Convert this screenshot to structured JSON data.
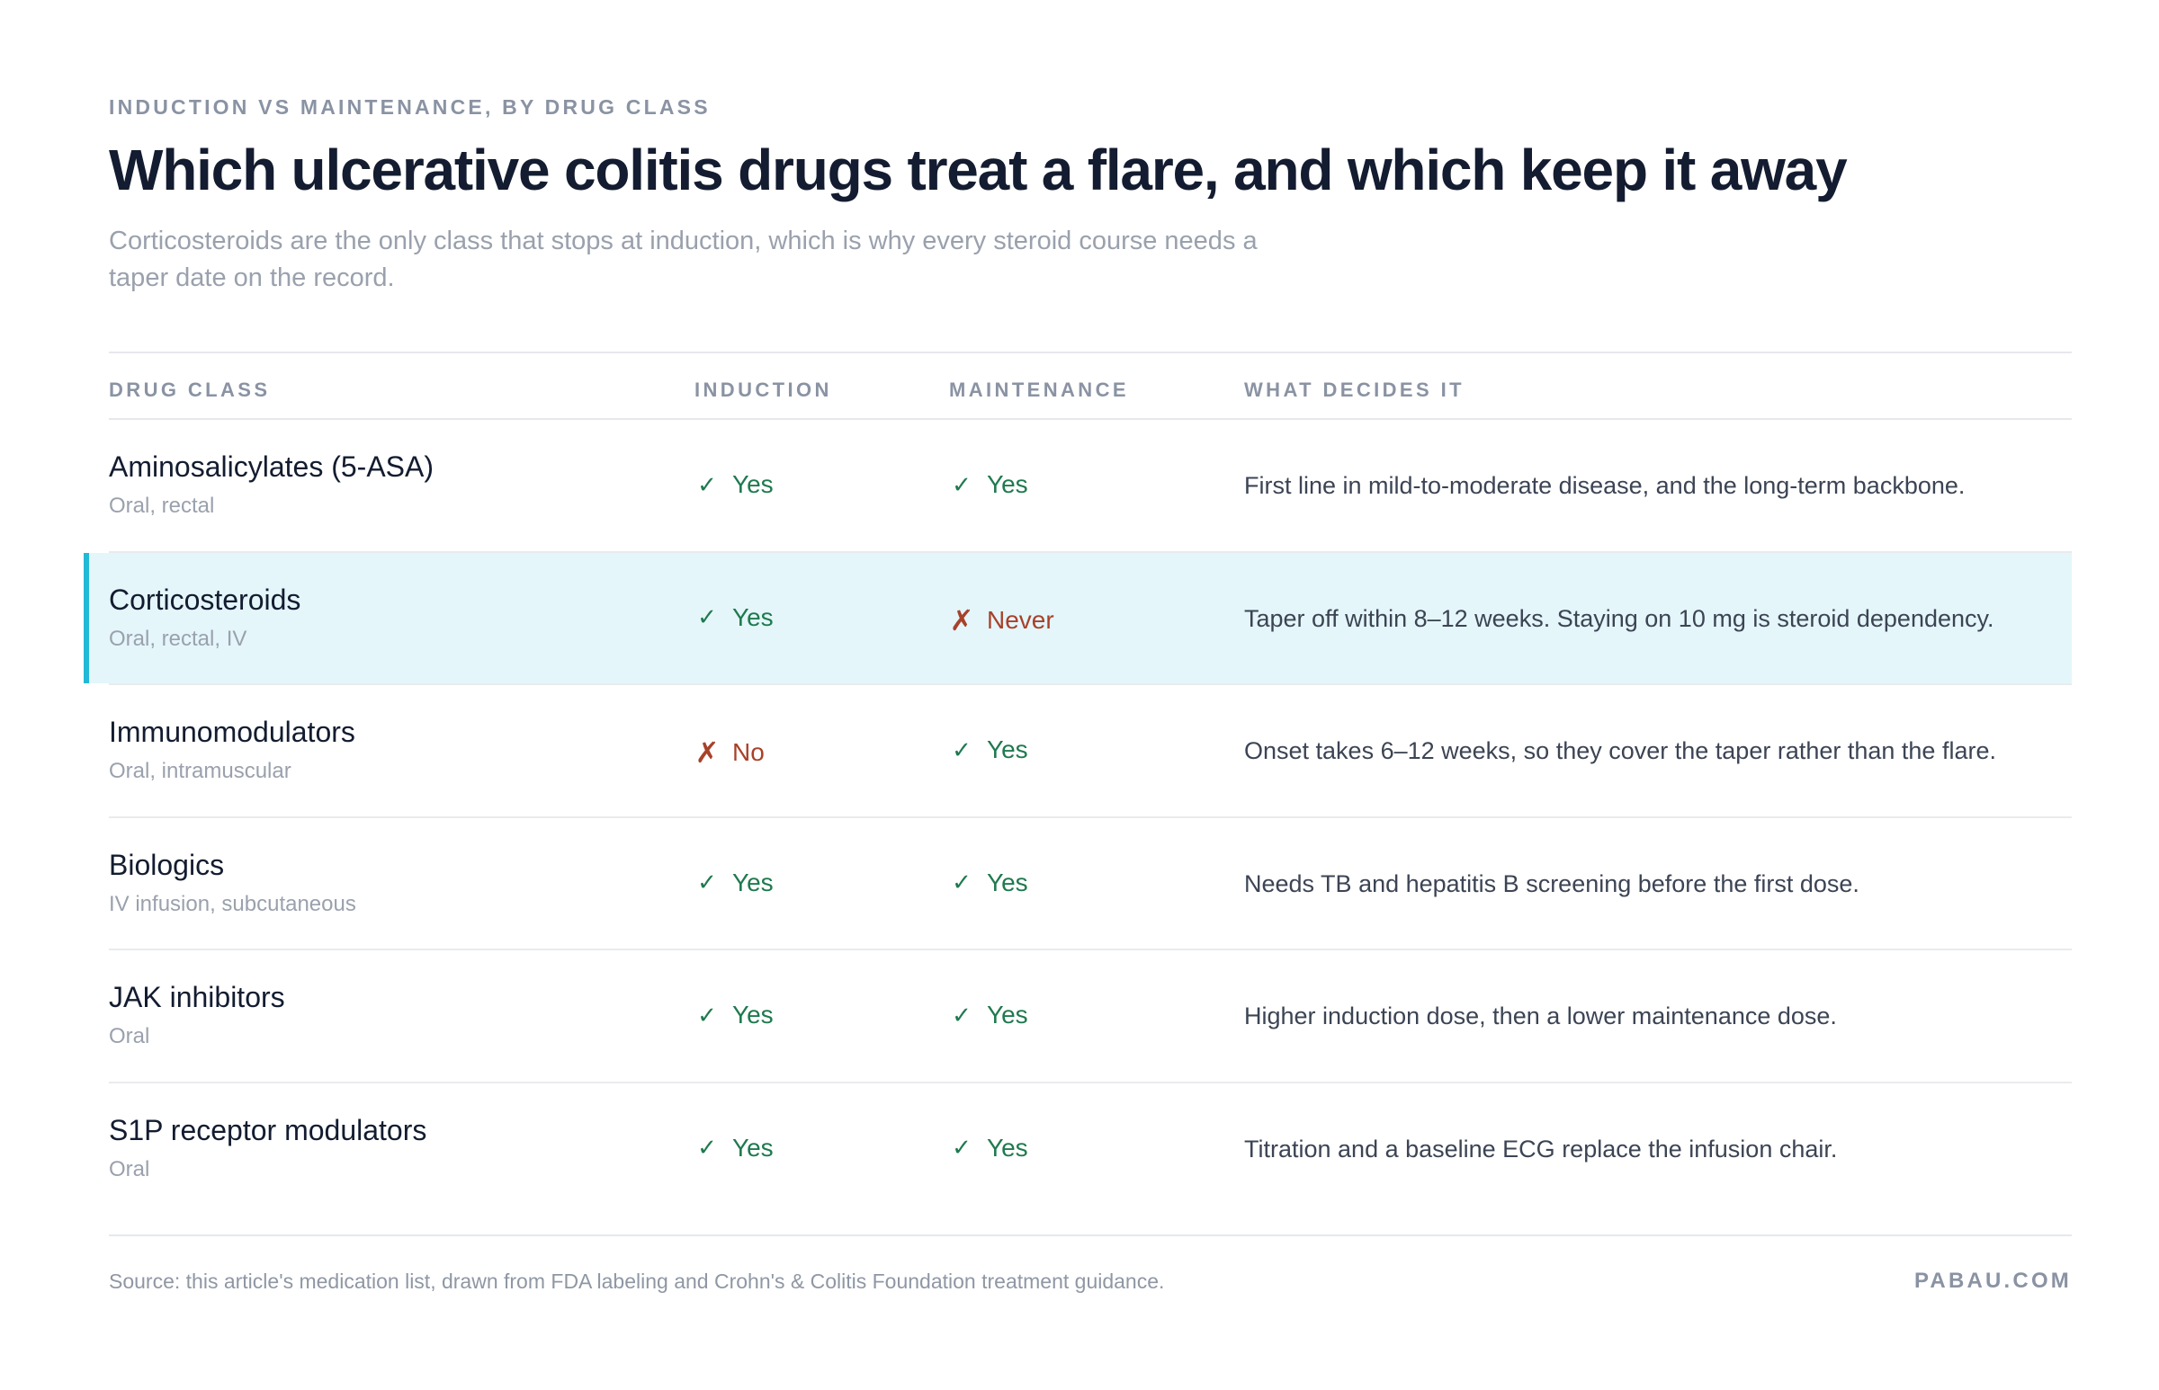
{
  "header": {
    "eyebrow": "INDUCTION VS MAINTENANCE, BY DRUG CLASS",
    "title": "Which ulcerative colitis drugs treat a flare, and which keep it away",
    "subtitle": "Corticosteroids are the only class that stops at induction, which is why every steroid course needs a taper date on the record."
  },
  "table": {
    "columns": {
      "drug_class": "DRUG CLASS",
      "induction": "INDUCTION",
      "maintenance": "MAINTENANCE",
      "what_decides_it": "WHAT DECIDES IT"
    },
    "rows": [
      {
        "name": "Aminosalicylates (5-ASA)",
        "route": "Oral, rectal",
        "induction": "Yes",
        "maintenance": "Yes",
        "note": "First line in mild-to-moderate disease, and the long-term backbone."
      },
      {
        "name": "Corticosteroids",
        "route": "Oral, rectal, IV",
        "induction": "Yes",
        "maintenance": "Never",
        "note": "Taper off within 8–12 weeks. Staying on 10 mg is steroid dependency."
      },
      {
        "name": "Immunomodulators",
        "route": "Oral, intramuscular",
        "induction": "No",
        "maintenance": "Yes",
        "note": "Onset takes 6–12 weeks, so they cover the taper rather than the flare."
      },
      {
        "name": "Biologics",
        "route": "IV infusion, subcutaneous",
        "induction": "Yes",
        "maintenance": "Yes",
        "note": "Needs TB and hepatitis B screening before the first dose."
      },
      {
        "name": "JAK inhibitors",
        "route": "Oral",
        "induction": "Yes",
        "maintenance": "Yes",
        "note": "Higher induction dose, then a lower maintenance dose."
      },
      {
        "name": "S1P receptor modulators",
        "route": "Oral",
        "induction": "Yes",
        "maintenance": "Yes",
        "note": "Titration and a baseline ECG replace the infusion chair."
      }
    ]
  },
  "icons": {
    "yes": "check-icon",
    "no": "cross-icon"
  },
  "colors": {
    "yes": "#1f7a4f",
    "no": "#a8412a",
    "highlight_bg": "#e4f6fa",
    "highlight_bar": "#23b8d6"
  },
  "footer": {
    "source": "Source: this article's medication list, drawn from FDA labeling and Crohn's & Colitis Foundation treatment guidance.",
    "brand": "PABAU.COM"
  }
}
